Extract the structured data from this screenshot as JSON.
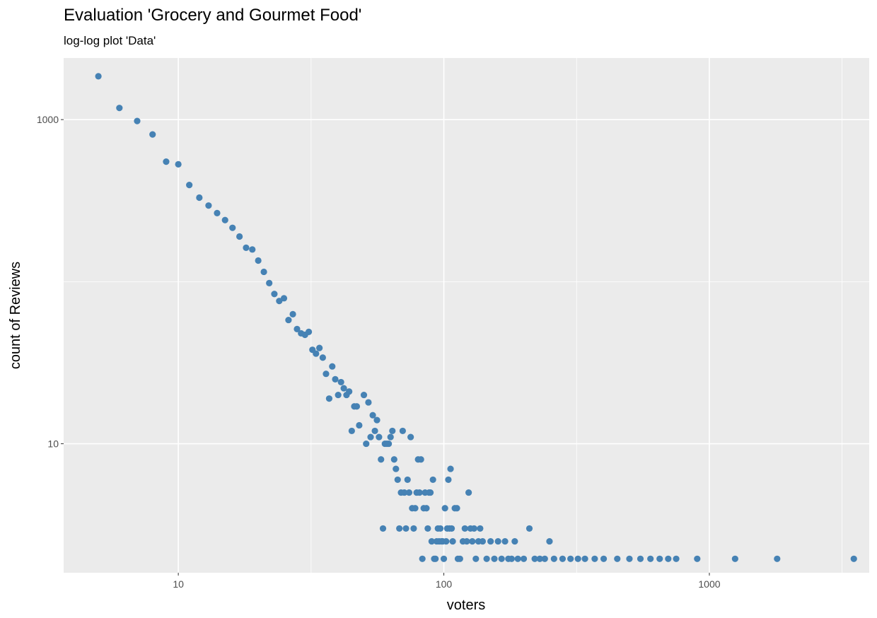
{
  "chart_data": {
    "type": "scatter",
    "title": "Evaluation 'Grocery and Gourmet Food'",
    "subtitle": "log-log plot 'Data'",
    "xlabel": "voters",
    "ylabel": "count of Reviews",
    "xscale": "log10",
    "yscale": "log10",
    "xlim": [
      3.7,
      4000
    ],
    "ylim": [
      1.6,
      2400
    ],
    "x_ticks": [
      10,
      100,
      1000
    ],
    "x_tick_labels": [
      "10",
      "100",
      "1000"
    ],
    "y_ticks": [
      10,
      1000
    ],
    "y_tick_labels": [
      "10",
      "1000"
    ],
    "grid": true,
    "point_color": "#4682b4",
    "panel_color": "#ebebeb",
    "points": [
      [
        5,
        1850
      ],
      [
        6,
        1180
      ],
      [
        7,
        980
      ],
      [
        8,
        810
      ],
      [
        9,
        550
      ],
      [
        10,
        530
      ],
      [
        11,
        395
      ],
      [
        12,
        330
      ],
      [
        13,
        295
      ],
      [
        14,
        265
      ],
      [
        15,
        240
      ],
      [
        16,
        215
      ],
      [
        17,
        190
      ],
      [
        18,
        162
      ],
      [
        19,
        158
      ],
      [
        20,
        135
      ],
      [
        21,
        115
      ],
      [
        22,
        98
      ],
      [
        23,
        84
      ],
      [
        24,
        76
      ],
      [
        25,
        79
      ],
      [
        26,
        58
      ],
      [
        27,
        63
      ],
      [
        28,
        51
      ],
      [
        29,
        48
      ],
      [
        30,
        47
      ],
      [
        31,
        49
      ],
      [
        32,
        38
      ],
      [
        33,
        36
      ],
      [
        34,
        39
      ],
      [
        35,
        34
      ],
      [
        36,
        27
      ],
      [
        37,
        19
      ],
      [
        38,
        30
      ],
      [
        39,
        25
      ],
      [
        40,
        20
      ],
      [
        41,
        24
      ],
      [
        42,
        22
      ],
      [
        43,
        20
      ],
      [
        44,
        21
      ],
      [
        45,
        12
      ],
      [
        46,
        17
      ],
      [
        47,
        17
      ],
      [
        48,
        13
      ],
      [
        50,
        20
      ],
      [
        51,
        10
      ],
      [
        52,
        18
      ],
      [
        53,
        11
      ],
      [
        54,
        15
      ],
      [
        55,
        12
      ],
      [
        56,
        14
      ],
      [
        57,
        11
      ],
      [
        58,
        8
      ],
      [
        59,
        3
      ],
      [
        60,
        10
      ],
      [
        61,
        10
      ],
      [
        62,
        10
      ],
      [
        63,
        11
      ],
      [
        64,
        12
      ],
      [
        65,
        8
      ],
      [
        66,
        7
      ],
      [
        67,
        6
      ],
      [
        68,
        3
      ],
      [
        69,
        5
      ],
      [
        70,
        12
      ],
      [
        71,
        5
      ],
      [
        72,
        3
      ],
      [
        73,
        6
      ],
      [
        74,
        5
      ],
      [
        75,
        11
      ],
      [
        76,
        4
      ],
      [
        77,
        3
      ],
      [
        78,
        4
      ],
      [
        79,
        5
      ],
      [
        80,
        8
      ],
      [
        81,
        5
      ],
      [
        82,
        8
      ],
      [
        83,
        1.95
      ],
      [
        84,
        4
      ],
      [
        85,
        5
      ],
      [
        86,
        4
      ],
      [
        87,
        3
      ],
      [
        88,
        5
      ],
      [
        89,
        5
      ],
      [
        90,
        2.5
      ],
      [
        91,
        6
      ],
      [
        92,
        1.95
      ],
      [
        93,
        1.95
      ],
      [
        94,
        2.5
      ],
      [
        95,
        3
      ],
      [
        96,
        2.5
      ],
      [
        97,
        3
      ],
      [
        98,
        2.5
      ],
      [
        99,
        2.5
      ],
      [
        100,
        1.95
      ],
      [
        101,
        4
      ],
      [
        102,
        2.5
      ],
      [
        103,
        3
      ],
      [
        104,
        6
      ],
      [
        105,
        3
      ],
      [
        106,
        7
      ],
      [
        107,
        3
      ],
      [
        108,
        2.5
      ],
      [
        110,
        4
      ],
      [
        112,
        4
      ],
      [
        113,
        1.95
      ],
      [
        115,
        1.95
      ],
      [
        118,
        2.5
      ],
      [
        120,
        3
      ],
      [
        122,
        2.5
      ],
      [
        124,
        5
      ],
      [
        126,
        3
      ],
      [
        128,
        2.5
      ],
      [
        130,
        3
      ],
      [
        132,
        1.95
      ],
      [
        135,
        2.5
      ],
      [
        137,
        3
      ],
      [
        140,
        2.5
      ],
      [
        145,
        1.95
      ],
      [
        150,
        2.5
      ],
      [
        155,
        1.95
      ],
      [
        160,
        2.5
      ],
      [
        165,
        1.95
      ],
      [
        170,
        2.5
      ],
      [
        175,
        1.95
      ],
      [
        180,
        1.95
      ],
      [
        185,
        2.5
      ],
      [
        190,
        1.95
      ],
      [
        200,
        1.95
      ],
      [
        210,
        3
      ],
      [
        220,
        1.95
      ],
      [
        230,
        1.95
      ],
      [
        240,
        1.95
      ],
      [
        250,
        2.5
      ],
      [
        260,
        1.95
      ],
      [
        280,
        1.95
      ],
      [
        300,
        1.95
      ],
      [
        320,
        1.95
      ],
      [
        340,
        1.95
      ],
      [
        370,
        1.95
      ],
      [
        400,
        1.95
      ],
      [
        450,
        1.95
      ],
      [
        500,
        1.95
      ],
      [
        550,
        1.95
      ],
      [
        600,
        1.95
      ],
      [
        650,
        1.95
      ],
      [
        700,
        1.95
      ],
      [
        750,
        1.95
      ],
      [
        900,
        1.95
      ],
      [
        1250,
        1.95
      ],
      [
        1800,
        1.95
      ],
      [
        3500,
        1.95
      ]
    ]
  }
}
